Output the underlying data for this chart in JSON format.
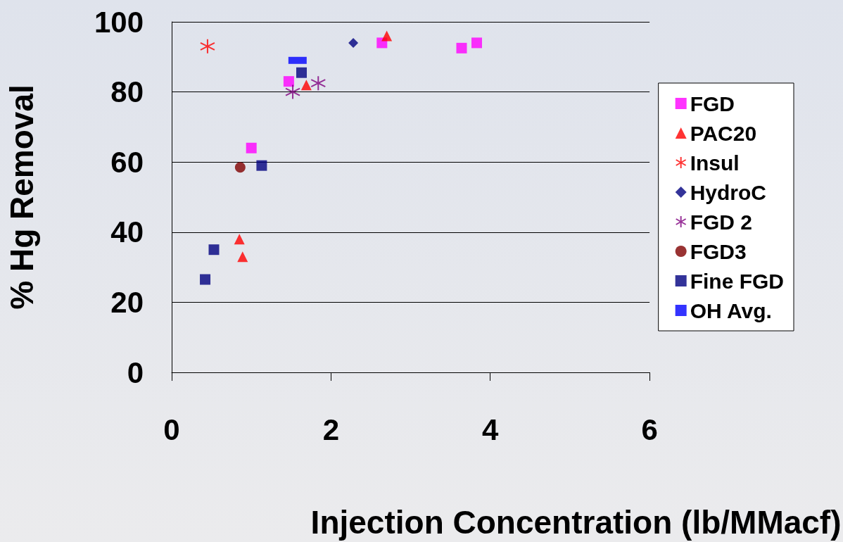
{
  "chart_data": {
    "type": "scatter",
    "xlabel": "Injection Concentration (lb/MMacf)",
    "ylabel": "% Hg Removal",
    "xlim": [
      0,
      6
    ],
    "xticks": [
      0,
      2,
      4,
      6
    ],
    "ylim": [
      0,
      100
    ],
    "yticks": [
      0,
      20,
      40,
      60,
      80,
      100
    ],
    "grid": "y",
    "legend": "right",
    "series": [
      {
        "name": "FGD",
        "color": "#ff00ff",
        "marker": "square",
        "x": [
          1.0,
          1.47,
          2.64,
          3.64,
          3.83
        ],
        "values": [
          64,
          83,
          94,
          92.5,
          94
        ]
      },
      {
        "name": "PAC20",
        "color": "#ff0000",
        "marker": "triangle",
        "x": [
          0.85,
          0.89,
          1.69,
          2.7
        ],
        "values": [
          38,
          33,
          82,
          96
        ]
      },
      {
        "name": "Insul",
        "color": "#ff0000",
        "marker": "cross",
        "x": [
          0.45
        ],
        "values": [
          93
        ]
      },
      {
        "name": "HydroC",
        "color": "#000080",
        "marker": "diamond",
        "x": [
          2.28
        ],
        "values": [
          94
        ]
      },
      {
        "name": "FGD 2",
        "color": "#800080",
        "marker": "cross",
        "x": [
          1.52,
          1.84
        ],
        "values": [
          80,
          82.5
        ]
      },
      {
        "name": "FGD3",
        "color": "#800000",
        "marker": "circle",
        "x": [
          0.86
        ],
        "values": [
          58.5
        ]
      },
      {
        "name": "Fine FGD",
        "color": "#000080",
        "marker": "square",
        "x": [
          0.42,
          0.53,
          1.13,
          1.63
        ],
        "values": [
          26.5,
          35,
          59,
          85.5
        ]
      },
      {
        "name": "OH Avg.",
        "color": "#0000ff",
        "marker": "square",
        "x": [
          1.58
        ],
        "values": [
          89
        ]
      }
    ]
  }
}
